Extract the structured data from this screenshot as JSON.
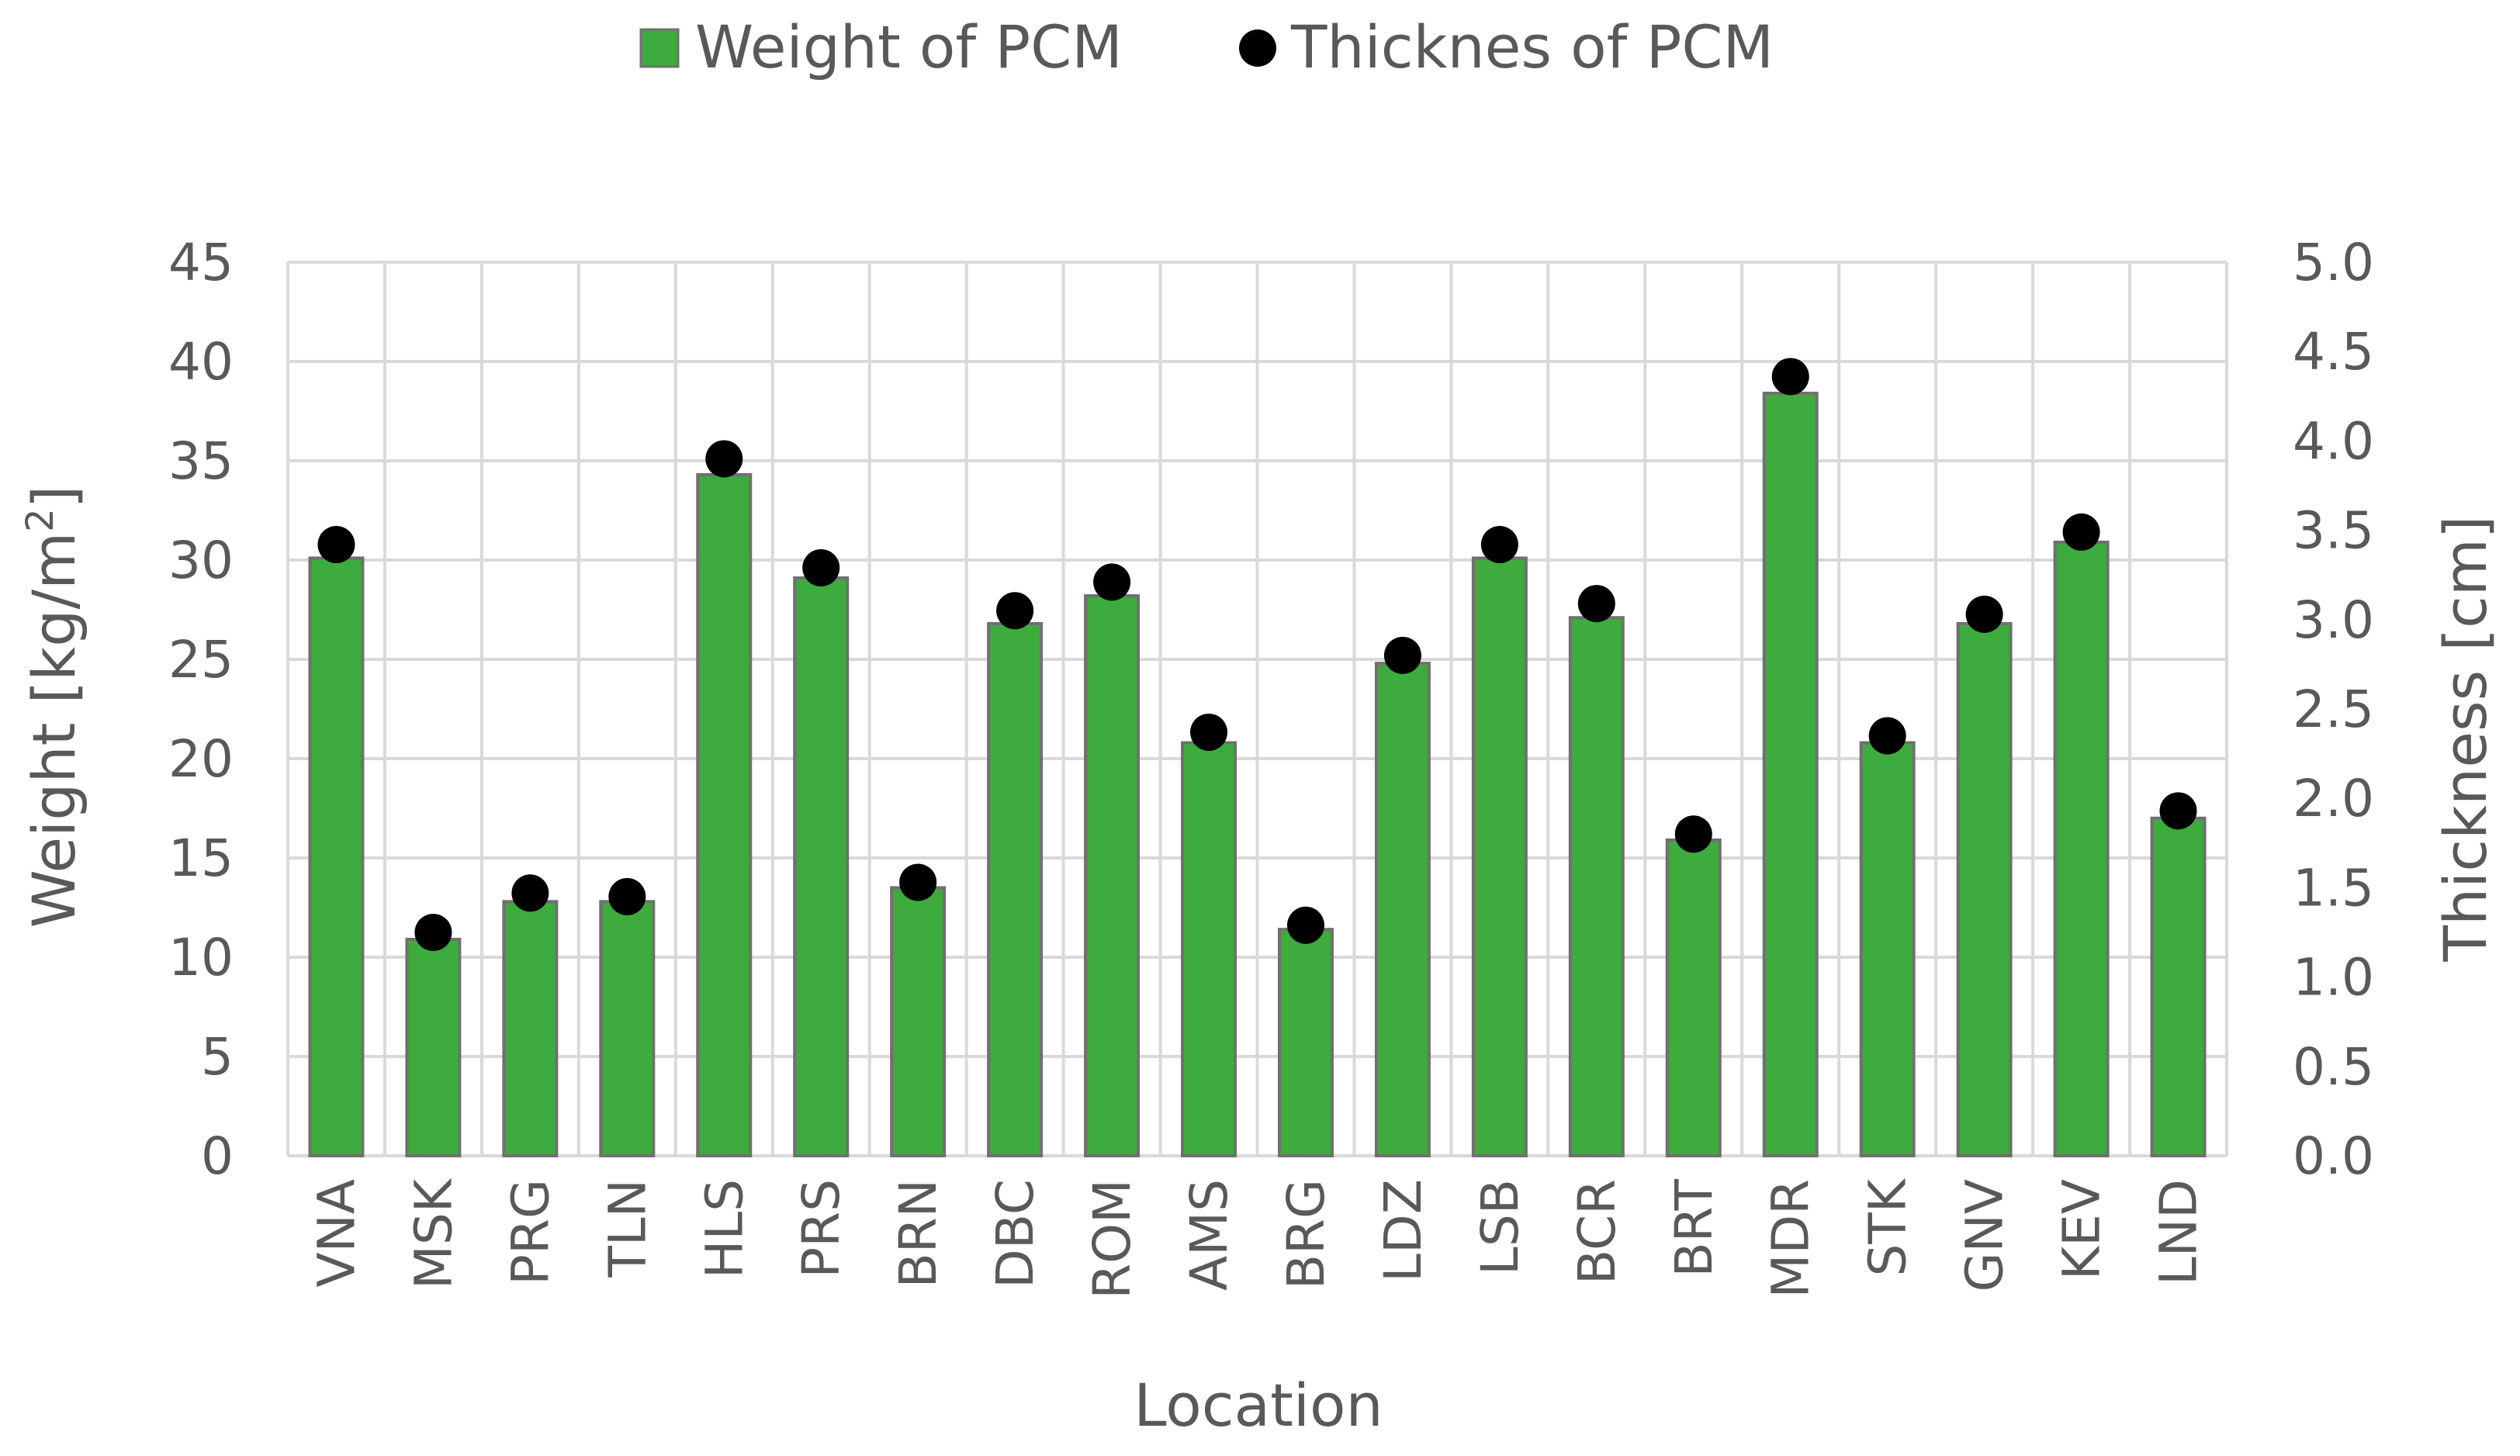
{
  "chart_data": {
    "type": "bar",
    "categories": [
      "VNA",
      "MSK",
      "PRG",
      "TLN",
      "HLS",
      "PRS",
      "BRN",
      "DBC",
      "ROM",
      "AMS",
      "BRG",
      "LDZ",
      "LSB",
      "BCR",
      "BRT",
      "MDR",
      "STK",
      "GNV",
      "KEV",
      "LND"
    ],
    "series": [
      {
        "name": "Weight of PCM",
        "kind": "bar",
        "axis": "left",
        "values": [
          30.1,
          10.9,
          12.8,
          12.8,
          34.3,
          29.1,
          13.5,
          26.8,
          28.2,
          20.8,
          11.4,
          24.8,
          30.1,
          27.1,
          15.9,
          38.4,
          20.8,
          26.8,
          30.9,
          17.0
        ]
      },
      {
        "name": "Thicknes of PCM",
        "kind": "marker",
        "axis": "right",
        "values": [
          3.42,
          1.25,
          1.47,
          1.45,
          3.9,
          3.29,
          1.53,
          3.05,
          3.21,
          2.37,
          1.29,
          2.8,
          3.42,
          3.09,
          1.8,
          4.36,
          2.35,
          3.03,
          3.49,
          1.93
        ]
      }
    ],
    "xlabel": "Location",
    "ylabel_left": "Weight [kg/m",
    "ylabel_left_sup": "2",
    "ylabel_left_end": "]",
    "ylabel_right": "Thickness [cm]",
    "ylim_left": [
      0,
      45
    ],
    "ylim_right": [
      0,
      5
    ],
    "yticks_left": [
      "0",
      "5",
      "10",
      "15",
      "20",
      "25",
      "30",
      "35",
      "40",
      "45"
    ],
    "yticks_right": [
      "0.0",
      "0.5",
      "1.0",
      "1.5",
      "2.0",
      "2.5",
      "3.0",
      "3.5",
      "4.0",
      "4.5",
      "5.0"
    ],
    "grid": true,
    "legend_position": "top-center",
    "colors": {
      "bar_fill": "#3dab3d",
      "bar_edge": "#707070",
      "marker": "#000000",
      "grid": "#d9d9d9",
      "text": "#595959"
    }
  }
}
